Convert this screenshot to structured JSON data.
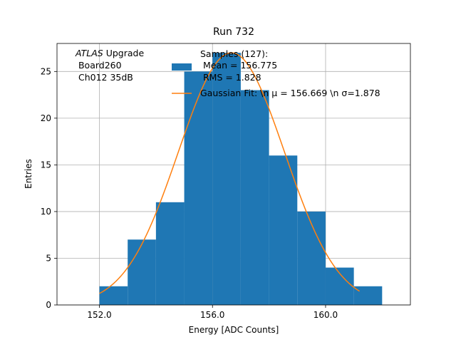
{
  "chart_data": {
    "type": "bar",
    "title": "Run 732",
    "xlabel": "Energy [ADC Counts]",
    "ylabel": "Entries",
    "xlim": [
      150.5,
      163.0
    ],
    "ylim": [
      0,
      28
    ],
    "x_ticks": [
      152.0,
      156.0,
      160.0
    ],
    "x_tick_labels": [
      "152.0",
      "156.0",
      "160.0"
    ],
    "y_ticks": [
      0,
      5,
      10,
      15,
      20,
      25
    ],
    "y_tick_labels": [
      "0",
      "5",
      "10",
      "15",
      "20",
      "25"
    ],
    "grid": true,
    "histogram": {
      "bin_edges": [
        152,
        153,
        154,
        155,
        156,
        157,
        158,
        159,
        160,
        161,
        162
      ],
      "counts": [
        2,
        7,
        11,
        25,
        27,
        23,
        16,
        10,
        4,
        2
      ],
      "color": "#1f77b4"
    },
    "fit": {
      "type": "gaussian",
      "mu": 156.669,
      "sigma": 1.878,
      "amplitude": 27,
      "x_range": [
        152.0,
        161.2
      ],
      "color": "#ff7f0e"
    },
    "legend": {
      "placement": "top-center",
      "entries": [
        {
          "lines": [
            "Samples (127):",
            " Mean = 156.775",
            " RMS = 1.828"
          ],
          "marker": "patch",
          "color": "#1f77b4"
        },
        {
          "lines": [
            "Gaussian Fit: \\n μ = 156.669 \\n σ=1.878"
          ],
          "marker": "line",
          "color": "#ff7f0e"
        }
      ]
    },
    "annotation": {
      "italic": "ATLAS",
      "rest": " Upgrade",
      "lines": [
        " Board260",
        " Ch012 35dB"
      ]
    }
  }
}
